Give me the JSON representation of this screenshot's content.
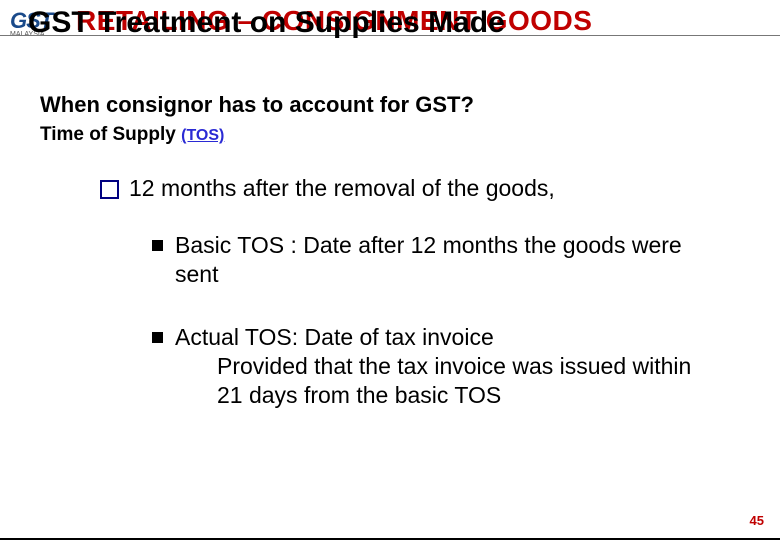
{
  "logo": {
    "main": "GST",
    "sub": "MALAYSIA"
  },
  "header_red": "RETAILING – CONSIGNMENT GOODS",
  "title_black": "GST Treatment on Supplies Made",
  "question": "When consignor has to account for GST?",
  "tos_label": "Time of Supply  ",
  "tos_link": "(TOS)",
  "bullet1": "12 months after the removal of the goods,",
  "bullet2": "Basic TOS : Date after 12 months the goods were sent",
  "bullet3_line1": "Actual TOS:  Date of tax invoice",
  "bullet3_rest": "Provided that the tax invoice was issued within 21  days from the basic TOS",
  "page_number": "45",
  "colors": {
    "red": "#C00000",
    "navy": "#000080",
    "link": "#2a2ad4",
    "logo": "#1a4a8a"
  }
}
